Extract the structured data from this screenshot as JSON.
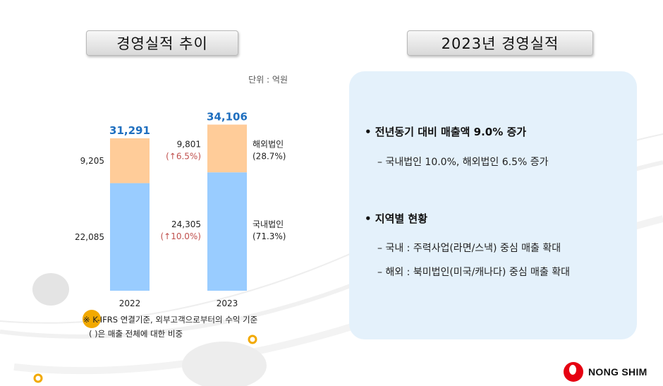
{
  "headers": {
    "left": "경영실적 추이",
    "right": "2023년 경영실적"
  },
  "unit_label": "단위 : 억원",
  "chart_data": {
    "type": "bar",
    "stacked": true,
    "categories": [
      "2022",
      "2023"
    ],
    "series": [
      {
        "name": "국내법인",
        "values": [
          22085,
          24305
        ],
        "color": "#99ccff"
      },
      {
        "name": "해외법인",
        "values": [
          9205,
          9801
        ],
        "color": "#ffcc99"
      }
    ],
    "totals": [
      "31,291",
      "34,106"
    ],
    "value_labels": {
      "2022": {
        "domestic": "22,085",
        "overseas": "9,205"
      },
      "2023": {
        "domestic": "24,305",
        "overseas": "9,801"
      }
    },
    "growth_labels": {
      "domestic": "(↑10.0%)",
      "overseas": "(↑6.5%)"
    },
    "legend": [
      {
        "name": "해외법인",
        "share": "(28.7%)"
      },
      {
        "name": "국내법인",
        "share": "(71.3%)"
      }
    ],
    "total_color": "#1f6fbf",
    "growth_color": "#c0504d"
  },
  "panel": {
    "bullet1": "• 전년동기 대비 매출액 9.0% 증가",
    "bullet1_sub": "– 국내법인 10.0%, 해외법인 6.5% 증가",
    "bullet2": "• 지역별 현황",
    "bullet2_sub1": "– 국내 : 주력사업(라면/스낵) 중심 매출 확대",
    "bullet2_sub2": "– 해외 : 북미법인(미국/캐나다) 중심 매출 확대"
  },
  "notes": {
    "line1": "※ K-IFRS 연결기준, 외부고객으로부터의 수익 기준",
    "line2": "( )은 매출 전체에 대한 비중"
  },
  "logo": {
    "text": "NONG SHIM",
    "color": "#e60012"
  }
}
